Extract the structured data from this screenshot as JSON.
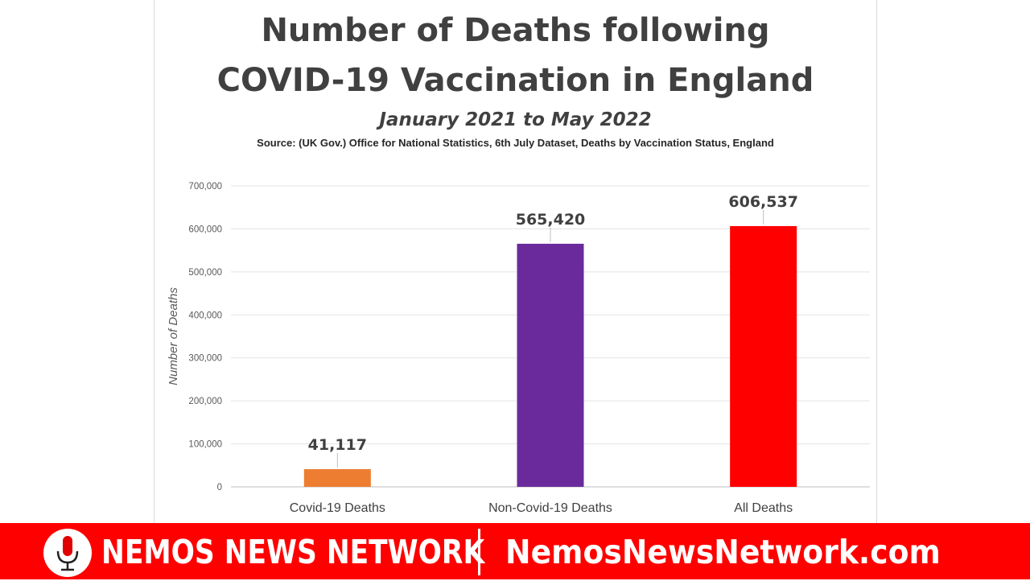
{
  "chart": {
    "title_line1": "Number of Deaths following",
    "title_line2": "COVID-19 Vaccination in England",
    "subtitle": "January 2021 to May 2022",
    "source": "Source: (UK Gov.) Office for National Statistics, 6th July Dataset, Deaths by Vaccination Status, England"
  },
  "chart_data": {
    "type": "bar",
    "title": "Number of Deaths following COVID-19 Vaccination in England",
    "subtitle": "January 2021 to May 2022",
    "categories": [
      "Covid-19 Deaths",
      "Non-Covid-19 Deaths",
      "All Deaths"
    ],
    "values": [
      41117,
      565420,
      606537
    ],
    "value_labels": [
      "41,117",
      "565,420",
      "606,537"
    ],
    "colors": [
      "#ed7d31",
      "#6a2a9c",
      "#ff0000"
    ],
    "xlabel": "",
    "ylabel": "Number of Deaths",
    "ylim": [
      0,
      700000
    ],
    "yticks": [
      0,
      100000,
      200000,
      300000,
      400000,
      500000,
      600000,
      700000
    ],
    "ytick_labels": [
      "0",
      "100,000",
      "200,000",
      "300,000",
      "400,000",
      "500,000",
      "600,000",
      "700,000"
    ],
    "grid": true,
    "legend": "none"
  },
  "banner": {
    "brand": "NEMOS NEWS NETWORK",
    "website": "NemosNewsNetwork.com",
    "color": "#ff0000",
    "icon": "microphone-icon"
  }
}
